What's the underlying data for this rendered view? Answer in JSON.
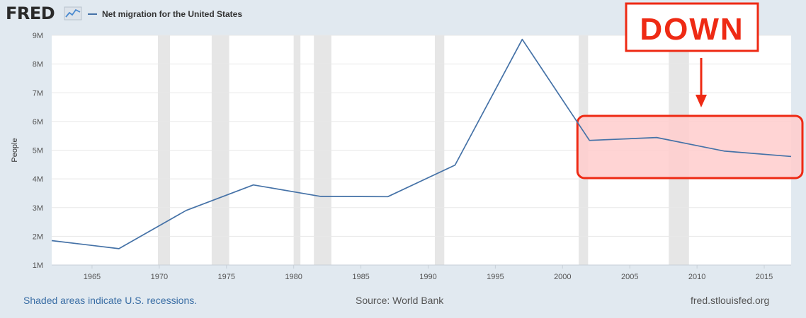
{
  "header": {
    "logo_text": "FRED",
    "legend_label": "Net migration for the United States"
  },
  "footer": {
    "recession_note": "Shaded areas indicate U.S. recessions.",
    "source": "Source: World Bank",
    "site": "fred.stlouisfed.org"
  },
  "annotation": {
    "label": "DOWN",
    "color": "#ee2a14",
    "fill": "#ffcdcd"
  },
  "colors": {
    "series": "#4572a7",
    "recession": "#e6e6e6",
    "grid": "#e8e8e8",
    "plot_bg": "#ffffff"
  },
  "chart_data": {
    "type": "line",
    "title": "",
    "xlabel": "",
    "ylabel": "People",
    "xlim": [
      1962,
      2017
    ],
    "ylim": [
      1000000,
      9000000
    ],
    "xticks": [
      1965,
      1970,
      1975,
      1980,
      1985,
      1990,
      1995,
      2000,
      2005,
      2010,
      2015
    ],
    "xtick_labels": [
      "1965",
      "1970",
      "1975",
      "1980",
      "1985",
      "1990",
      "1995",
      "2000",
      "2005",
      "2010",
      "2015"
    ],
    "yticks": [
      1000000,
      2000000,
      3000000,
      4000000,
      5000000,
      6000000,
      7000000,
      8000000,
      9000000
    ],
    "ytick_labels": [
      "1M",
      "2M",
      "3M",
      "4M",
      "5M",
      "6M",
      "7M",
      "8M",
      "9M"
    ],
    "grid": true,
    "series": [
      {
        "name": "Net migration for the United States",
        "x": [
          1962,
          1967,
          1972,
          1977,
          1982,
          1987,
          1992,
          1997,
          2002,
          2007,
          2012,
          2017
        ],
        "y": [
          1850000,
          1570000,
          2900000,
          3790000,
          3390000,
          3380000,
          4480000,
          8860000,
          5340000,
          5440000,
          4970000,
          4780000
        ]
      }
    ],
    "recessions": [
      [
        1969.9,
        1970.8
      ],
      [
        1973.9,
        1975.2
      ],
      [
        1980.0,
        1980.5
      ],
      [
        1981.5,
        1982.8
      ],
      [
        1990.5,
        1991.2
      ],
      [
        2001.2,
        2001.9
      ],
      [
        2007.9,
        2009.4
      ]
    ],
    "highlight": {
      "x": [
        2002,
        2017
      ]
    }
  }
}
